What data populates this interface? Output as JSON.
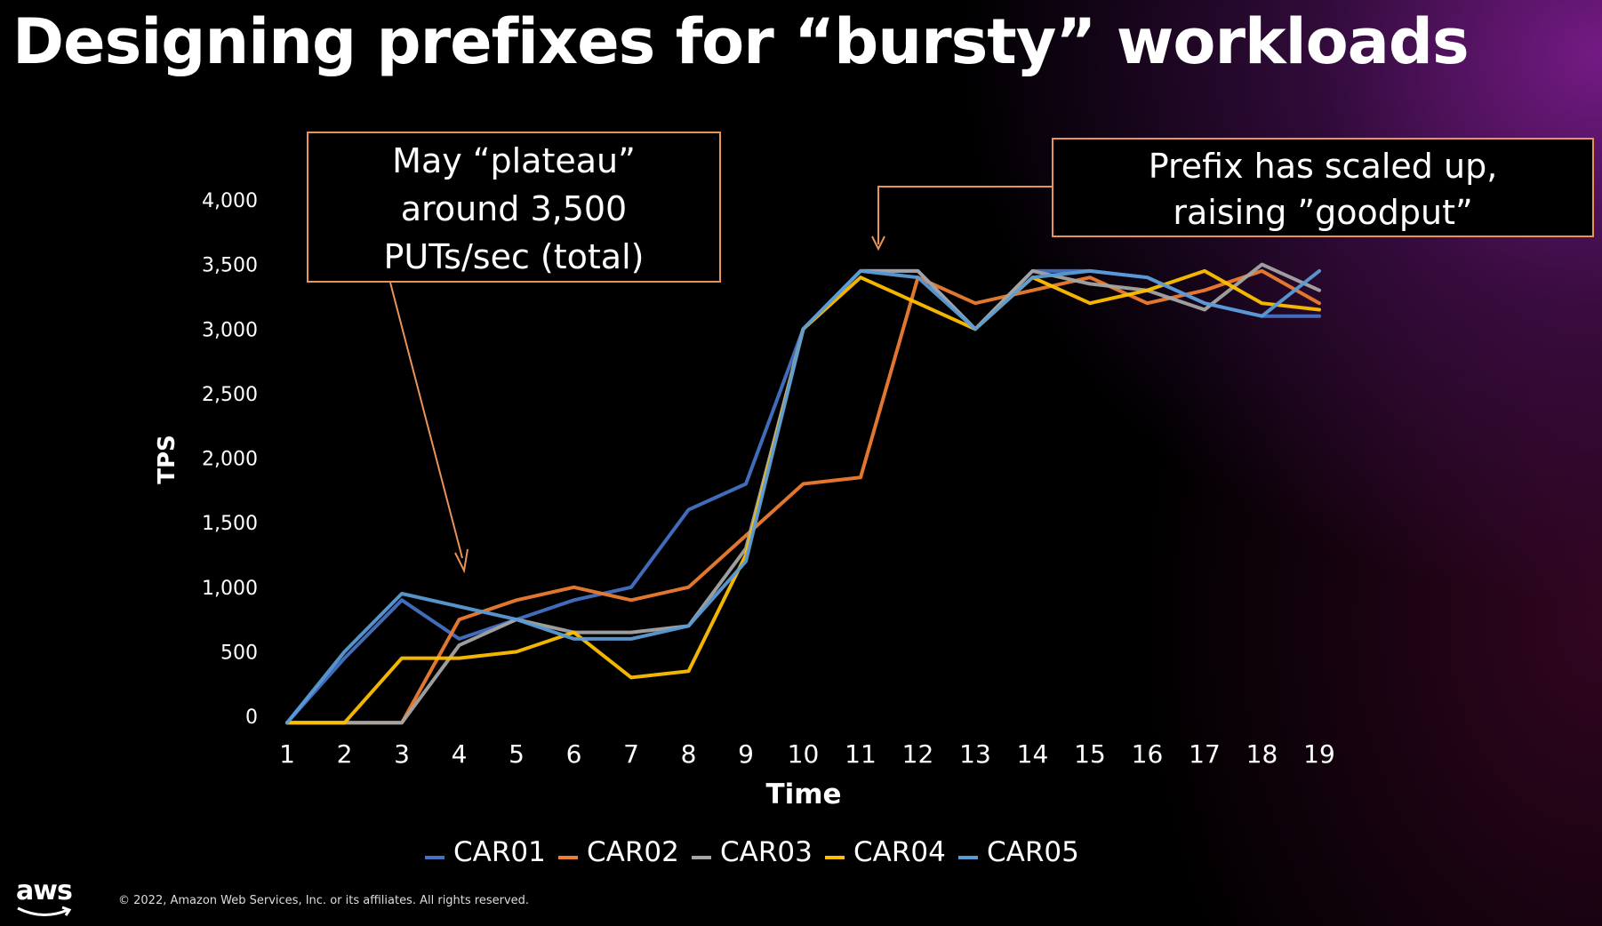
{
  "slide": {
    "title": "Designing prefixes for “bursty” workloads",
    "callout_left": "May “plateau”\naround 3,500\nPUTs/sec (total)",
    "callout_right": "Prefix has scaled up,\nraising ”goodput”",
    "logo_text": "aws",
    "copyright": "© 2022, Amazon Web Services, Inc. or its affiliates. All rights reserved.",
    "accent_color": "#e8935a"
  },
  "chart_data": {
    "type": "line",
    "title": "",
    "xlabel": "Time",
    "ylabel": "TPS",
    "x": [
      1,
      2,
      3,
      4,
      5,
      6,
      7,
      8,
      9,
      10,
      11,
      12,
      13,
      14,
      15,
      16,
      17,
      18,
      19
    ],
    "x_tick_labels": [
      "1",
      "2",
      "3",
      "4",
      "5",
      "6",
      "7",
      "8",
      "9",
      "10",
      "11",
      "12",
      "13",
      "14",
      "15",
      "16",
      "17",
      "18",
      "19"
    ],
    "y_ticks": [
      0,
      500,
      1000,
      1500,
      2000,
      2500,
      3000,
      3500,
      4000
    ],
    "y_tick_labels": [
      "0",
      "500",
      "1,000",
      "1,500",
      "2,000",
      "2,500",
      "3,000",
      "3,500",
      "4,000"
    ],
    "ylim": [
      0,
      4000
    ],
    "grid": false,
    "legend_position": "bottom",
    "series": [
      {
        "name": "CAR01",
        "color": "#4472c4",
        "values": [
          -50,
          450,
          900,
          600,
          750,
          900,
          1000,
          1600,
          1800,
          3000,
          3450,
          3450,
          3000,
          3450,
          3450,
          3400,
          3200,
          3100,
          3100
        ]
      },
      {
        "name": "CAR02",
        "color": "#ed7d31",
        "values": [
          -50,
          -50,
          -50,
          750,
          900,
          1000,
          900,
          1000,
          1400,
          1800,
          1850,
          3400,
          3200,
          3300,
          3400,
          3200,
          3300,
          3450,
          3200
        ]
      },
      {
        "name": "CAR03",
        "color": "#a5a5a5",
        "values": [
          -50,
          -50,
          -50,
          550,
          750,
          650,
          650,
          700,
          1300,
          3000,
          3450,
          3450,
          3000,
          3450,
          3350,
          3300,
          3150,
          3500,
          3300
        ]
      },
      {
        "name": "CAR04",
        "color": "#ffc000",
        "values": [
          -50,
          -50,
          450,
          450,
          500,
          650,
          300,
          350,
          1250,
          3000,
          3400,
          3200,
          3000,
          3400,
          3200,
          3300,
          3450,
          3200,
          3150
        ]
      },
      {
        "name": "CAR05",
        "color": "#5b9bd5",
        "values": [
          -50,
          500,
          950,
          850,
          750,
          600,
          600,
          700,
          1200,
          3000,
          3450,
          3400,
          3000,
          3400,
          3450,
          3400,
          3200,
          3100,
          3450
        ]
      }
    ]
  }
}
